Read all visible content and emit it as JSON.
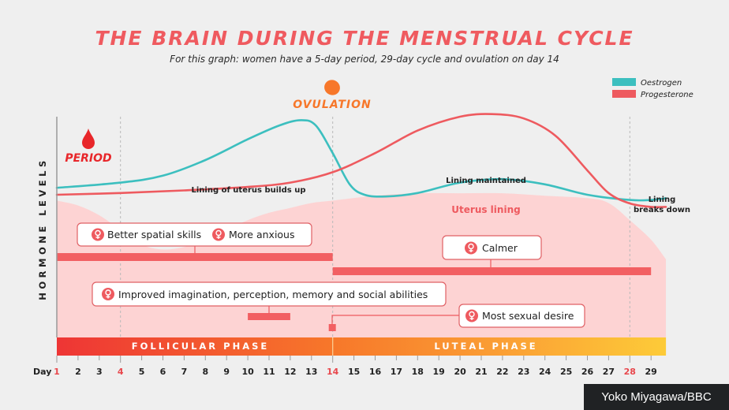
{
  "chart_data": {
    "type": "line",
    "title": "THE BRAIN DURING THE MENSTRUAL CYCLE",
    "subtitle": "For this graph: women have a 5-day period, 29-day cycle and ovulation on day 14",
    "xlabel": "Day",
    "ylabel": "HORMONE LEVELS",
    "x_ticks": [
      1,
      2,
      3,
      4,
      5,
      6,
      7,
      8,
      9,
      10,
      11,
      12,
      13,
      14,
      15,
      16,
      17,
      18,
      19,
      20,
      21,
      22,
      23,
      24,
      25,
      26,
      27,
      28,
      29
    ],
    "highlighted_ticks": [
      1,
      4,
      14,
      28
    ],
    "xlim": [
      1,
      30
    ],
    "ylim": [
      0,
      100
    ],
    "legend": {
      "position": "top-right",
      "entries": [
        {
          "name": "Oestrogen",
          "color": "#3cbfbf"
        },
        {
          "name": "Progesterone",
          "color": "#ee5a5f"
        }
      ]
    },
    "series": [
      {
        "name": "Oestrogen",
        "color": "#3cbfbf",
        "x": [
          1,
          4,
          6,
          8,
          10,
          11.5,
          12.5,
          13.2,
          14,
          14.8,
          15.5,
          16.5,
          18,
          20,
          22,
          24,
          26,
          28,
          29,
          29.7
        ],
        "y": [
          44,
          47,
          51,
          60,
          72,
          80,
          83,
          80,
          64,
          46,
          40,
          39,
          41,
          47,
          49,
          46,
          40,
          37,
          37,
          38
        ]
      },
      {
        "name": "Progesterone",
        "color": "#ee5a5f",
        "x": [
          1,
          4,
          7,
          10,
          12,
          14,
          16,
          18,
          20,
          21.5,
          23,
          24.5,
          26,
          27,
          28,
          29,
          29.7
        ],
        "y": [
          40,
          41,
          42.5,
          44.5,
          47,
          53,
          64,
          77,
          85,
          86.5,
          84,
          74,
          54,
          41,
          35,
          33,
          33
        ]
      }
    ],
    "uterus_lining": {
      "label": "Uterus lining",
      "x": [
        1,
        2,
        3,
        4,
        5,
        6,
        7,
        8,
        9,
        10,
        11,
        12,
        13,
        14,
        16,
        18,
        20,
        22,
        24,
        26,
        27,
        28,
        29,
        29.7
      ],
      "y": [
        28,
        27,
        25,
        22,
        19,
        18,
        18.5,
        20,
        22,
        24,
        25.5,
        26.5,
        27.5,
        28,
        29,
        29.5,
        29.5,
        29.5,
        29,
        28.5,
        27.5,
        24,
        20,
        16
      ]
    },
    "annotations": {
      "period": "PERIOD",
      "ovulation": "OVULATION",
      "lining_builds": "Lining of uterus builds up",
      "lining_maintained": "Lining maintained",
      "lining_breaks_1": "Lining",
      "lining_breaks_2": "breaks down"
    },
    "effects": [
      {
        "label": "Better spatial skills",
        "bar_days": [
          1,
          14
        ]
      },
      {
        "label": "More anxious",
        "bar_days": [
          1,
          14
        ]
      },
      {
        "label": "Calmer",
        "bar_days": [
          14,
          29
        ]
      },
      {
        "label": "Improved imagination, perception, memory and social abilities",
        "bar_days": [
          10,
          12
        ]
      },
      {
        "label": "Most sexual desire",
        "bar_days": [
          14,
          14.3
        ]
      }
    ],
    "phases": [
      {
        "label": "FOLLICULAR PHASE",
        "days": [
          1,
          14
        ]
      },
      {
        "label": "LUTEAL PHASE",
        "days": [
          14,
          30
        ]
      }
    ]
  },
  "credit": "Yoko Miyagawa/BBC"
}
